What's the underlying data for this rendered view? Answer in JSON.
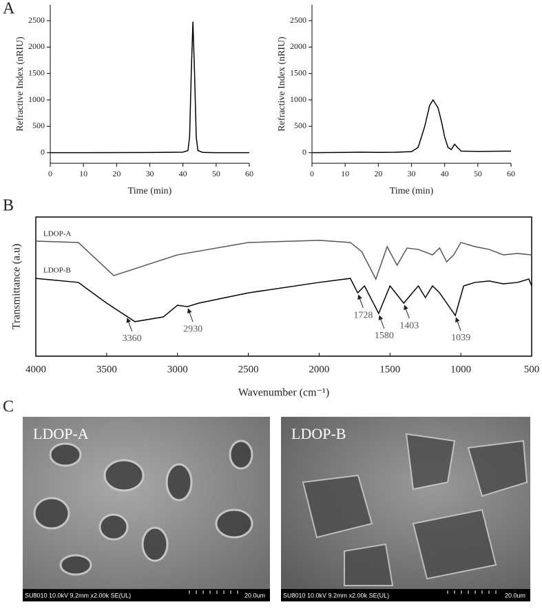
{
  "panels": [
    "A",
    "B",
    "C"
  ],
  "chart_data": [
    {
      "type": "line",
      "xlabel": "Time (min)",
      "ylabel": "Refractive Index (nRIU)",
      "x": [
        0,
        10,
        20,
        30,
        40,
        41.5,
        42,
        42.5,
        43,
        43.5,
        44,
        44.5,
        46,
        50,
        60
      ],
      "values": [
        0,
        0,
        2,
        3,
        10,
        40,
        300,
        1500,
        2480,
        1500,
        300,
        40,
        5,
        0,
        0
      ],
      "color": "#000000",
      "xlim": [
        0,
        60
      ],
      "ylim": [
        -200,
        2800
      ],
      "xticks": [
        0,
        10,
        20,
        30,
        40,
        50,
        60
      ],
      "yticks": [
        0,
        500,
        1000,
        1500,
        2000,
        2500
      ]
    },
    {
      "type": "line",
      "xlabel": "Time (min)",
      "ylabel": "Refractive Index (nRIU)",
      "x": [
        0,
        10,
        15,
        20,
        25,
        30,
        32,
        34,
        35.5,
        36.5,
        38,
        39,
        40,
        41,
        42,
        43,
        44,
        45,
        50,
        60
      ],
      "values": [
        0,
        5,
        10,
        5,
        8,
        20,
        100,
        500,
        900,
        1000,
        850,
        600,
        300,
        100,
        60,
        160,
        90,
        30,
        25,
        30
      ],
      "color": "#000000",
      "xlim": [
        0,
        60
      ],
      "ylim": [
        -200,
        2800
      ],
      "xticks": [
        0,
        10,
        20,
        30,
        40,
        50,
        60
      ],
      "yticks": [
        0,
        500,
        1000,
        1500,
        2000,
        2500
      ]
    },
    {
      "type": "line",
      "xlabel": "Wavenumber (cm⁻¹)",
      "ylabel": "Transmittance (a.u)",
      "xlim": [
        4000,
        500
      ],
      "ylim": [
        0,
        100
      ],
      "xticks": [
        4000,
        3500,
        3000,
        2500,
        2000,
        1500,
        1000,
        500
      ],
      "series": [
        {
          "name": "LDOP-A",
          "color": "#555555",
          "x": [
            4000,
            3700,
            3450,
            3000,
            2500,
            2000,
            1780,
            1700,
            1600,
            1520,
            1450,
            1380,
            1300,
            1200,
            1150,
            1100,
            1050,
            1000,
            900,
            800,
            700,
            600,
            500
          ],
          "values": [
            82.7,
            81.7,
            57.9,
            72.8,
            81.7,
            83.2,
            81.7,
            75.2,
            55.4,
            78.7,
            65.3,
            77.7,
            76.7,
            72.8,
            77.7,
            67.8,
            72.8,
            81.7,
            78.7,
            76.7,
            72.8,
            73.8,
            72.8
          ]
        },
        {
          "name": "LDOP-B",
          "color": "#000000",
          "x": [
            4000,
            3700,
            3500,
            3300,
            3100,
            3000,
            2930,
            2850,
            2500,
            2000,
            1780,
            1728,
            1680,
            1580,
            1500,
            1403,
            1300,
            1250,
            1200,
            1150,
            1039,
            980,
            900,
            800,
            700,
            600,
            520,
            500
          ],
          "values": [
            55.9,
            53.0,
            38.1,
            24.8,
            28.2,
            36.6,
            35.6,
            38.1,
            45.5,
            53.0,
            55.9,
            45.5,
            50.5,
            30.7,
            50.5,
            38.1,
            50.5,
            42.1,
            50.5,
            45.5,
            29.2,
            50.5,
            53.0,
            54.0,
            52.0,
            53.0,
            55.4,
            50.5
          ]
        }
      ],
      "annotations": [
        3360,
        2930,
        1728,
        1580,
        1403,
        1039
      ]
    }
  ],
  "images": [
    {
      "label": "LDOP-A",
      "info": "SU8010 10.0kV 9.2mm x2.00k SE(UL)",
      "scale": "20.0um"
    },
    {
      "label": "LDOP-B",
      "info": "SU8010 10.0kV 9.2mm x2.00k SE(UL)",
      "scale": "20.0um"
    }
  ]
}
